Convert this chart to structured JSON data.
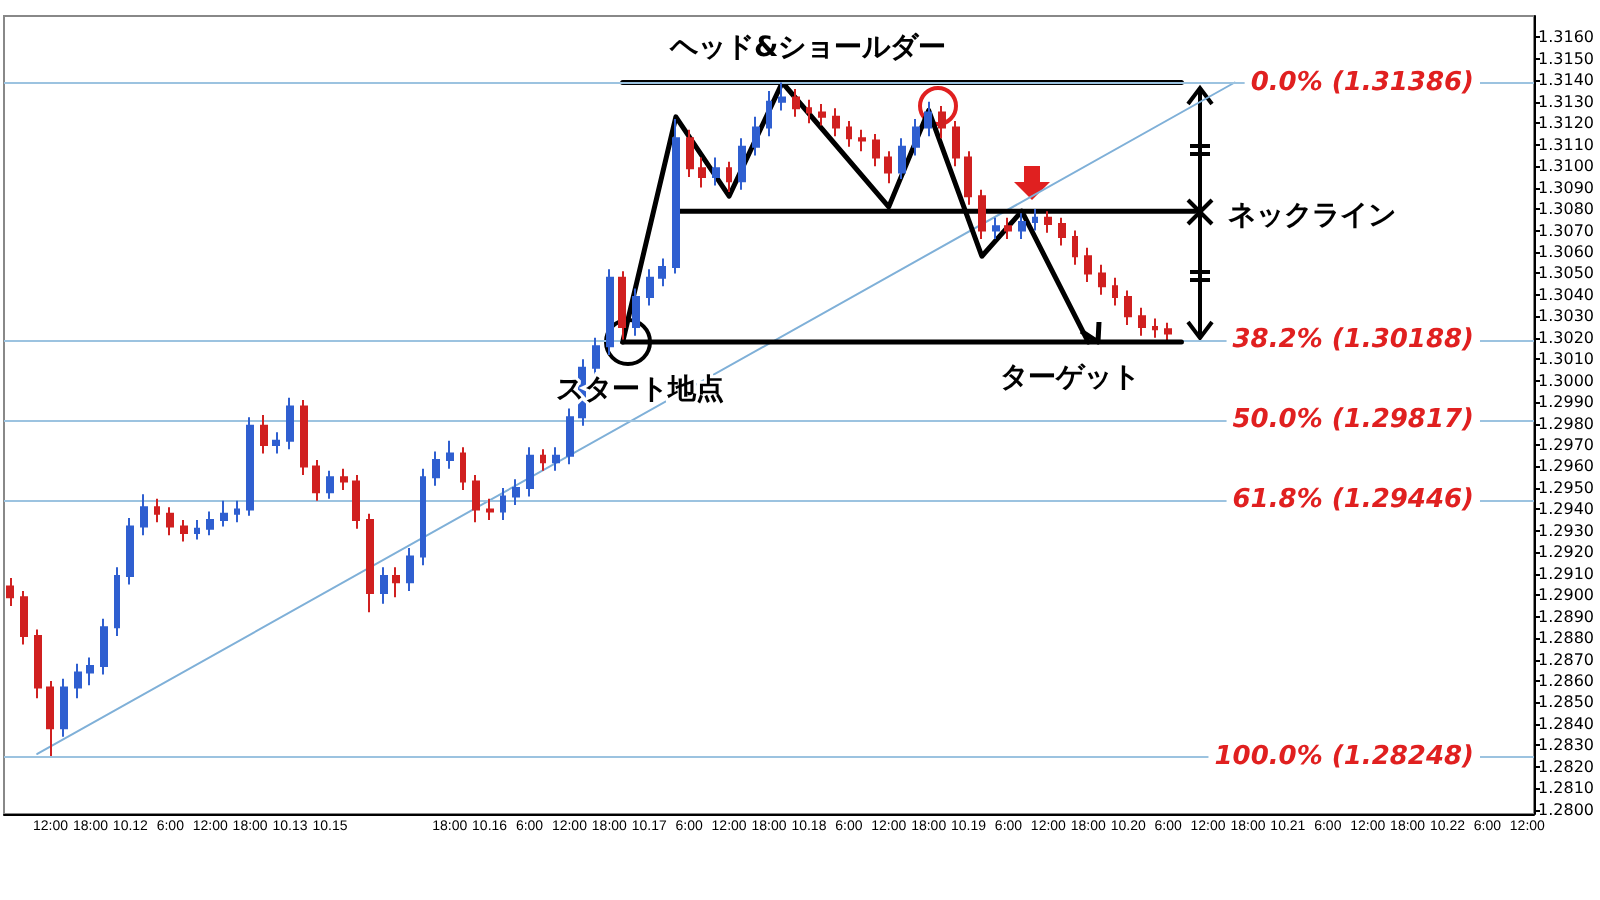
{
  "chart_data": {
    "type": "candlestick",
    "title": "ヘッド&ショールダー",
    "annotations": [
      "スタート地点",
      "ターゲット",
      "ネックライン"
    ],
    "categories": [
      null,
      null,
      null,
      "12:00",
      null,
      null,
      "18:00",
      null,
      null,
      "10.12",
      null,
      null,
      "6:00",
      null,
      null,
      "12:00",
      null,
      null,
      "18:00",
      null,
      null,
      "10.13",
      null,
      null,
      "10.15",
      null,
      null,
      null,
      null,
      null,
      null,
      null,
      null,
      "18:00",
      null,
      null,
      "10.16",
      null,
      null,
      "6:00",
      null,
      null,
      "12:00",
      null,
      null,
      "18:00",
      null,
      null,
      "10.17",
      null,
      null,
      "6:00",
      null,
      null,
      "12:00",
      null,
      null,
      "18:00",
      null,
      null,
      "10.18",
      null,
      null,
      "6:00",
      null,
      null,
      "12:00",
      null,
      null,
      "18:00",
      null,
      null,
      "10.19",
      null,
      null,
      "6:00",
      null,
      null,
      "12:00",
      null,
      null,
      "18:00",
      null,
      null,
      "10.20",
      null,
      null,
      "6:00",
      null,
      null,
      "12:00",
      null,
      null,
      "18:00",
      null,
      null,
      "10.21",
      null,
      null,
      "6:00",
      null,
      null,
      "12:00",
      null,
      null,
      "18:00",
      null,
      null,
      "10.22",
      null,
      null,
      "6:00",
      null,
      null,
      "12:00"
    ],
    "colors": [
      "#d02020",
      "#d02020",
      "#d02020",
      "#d02020",
      "#2f5fd0",
      "#2f5fd0",
      "#2f5fd0",
      "#2f5fd0",
      "#2f5fd0",
      "#2f5fd0",
      "#2f5fd0",
      "#d02020",
      "#d02020",
      "#d02020",
      "#2f5fd0",
      "#2f5fd0",
      "#2f5fd0",
      "#2f5fd0",
      "#2f5fd0",
      "#d02020",
      "#2f5fd0",
      "#2f5fd0",
      "#d02020",
      "#d02020",
      "#2f5fd0",
      "#d02020",
      "#d02020",
      "#d02020",
      "#2f5fd0",
      "#d02020",
      "#2f5fd0",
      "#2f5fd0",
      "#2f5fd0",
      "#2f5fd0",
      "#d02020",
      "#d02020",
      "#d02020",
      "#2f5fd0",
      "#2f5fd0",
      "#2f5fd0",
      "#d02020",
      "#2f5fd0",
      "#2f5fd0",
      "#2f5fd0",
      "#2f5fd0",
      "#2f5fd0",
      "#d02020",
      "#2f5fd0",
      "#2f5fd0",
      "#2f5fd0",
      "#2f5fd0",
      "#d02020",
      "#d02020",
      "#2f5fd0",
      "#d02020",
      "#2f5fd0",
      "#2f5fd0",
      "#2f5fd0",
      "#2f5fd0",
      "#d02020",
      "#d02020",
      "#d02020",
      "#d02020",
      "#d02020",
      "#d02020",
      "#d02020",
      "#d02020",
      "#2f5fd0",
      "#2f5fd0",
      "#2f5fd0",
      "#d02020",
      "#d02020",
      "#d02020",
      "#d02020",
      "#2f5fd0",
      "#d02020",
      "#2f5fd0",
      "#2f5fd0",
      "#d02020",
      "#d02020",
      "#d02020",
      "#d02020",
      "#d02020",
      "#d02020",
      "#d02020",
      "#d02020",
      "#d02020",
      "#d02020",
      null,
      null,
      null,
      null,
      null,
      null,
      null,
      null,
      null,
      null,
      null,
      null,
      null,
      null,
      null,
      null,
      null,
      null,
      null,
      null,
      null,
      null,
      null,
      null,
      null,
      null,
      null
    ],
    "ohlc": [
      [
        1.2904,
        1.2908,
        1.2895,
        1.2899
      ],
      [
        1.2899,
        1.2902,
        1.2877,
        1.2881
      ],
      [
        1.2881,
        1.2884,
        1.2852,
        1.2857
      ],
      [
        1.2857,
        1.286,
        1.2825,
        1.2838
      ],
      [
        1.2838,
        1.2861,
        1.2834,
        1.2857
      ],
      [
        1.2857,
        1.2868,
        1.2852,
        1.2864
      ],
      [
        1.2864,
        1.2871,
        1.2858,
        1.2867
      ],
      [
        1.2867,
        1.2889,
        1.2863,
        1.2885
      ],
      [
        1.2885,
        1.2913,
        1.2881,
        1.2909
      ],
      [
        1.2909,
        1.2936,
        1.2905,
        1.2932
      ],
      [
        1.2932,
        1.2947,
        1.2928,
        1.2941
      ],
      [
        1.2941,
        1.2945,
        1.2934,
        1.2938
      ],
      [
        1.2938,
        1.2941,
        1.2928,
        1.2932
      ],
      [
        1.2932,
        1.2935,
        1.2925,
        1.2929
      ],
      [
        1.2929,
        1.2935,
        1.2926,
        1.2931
      ],
      [
        1.2931,
        1.2939,
        1.2928,
        1.2935
      ],
      [
        1.2935,
        1.2944,
        1.2932,
        1.2938
      ],
      [
        1.2938,
        1.2944,
        1.2934,
        1.294
      ],
      [
        1.294,
        1.2983,
        1.2937,
        1.2979
      ],
      [
        1.2979,
        1.2984,
        1.2966,
        1.297
      ],
      [
        1.297,
        1.2976,
        1.2966,
        1.2972
      ],
      [
        1.2972,
        1.2992,
        1.2968,
        1.2988
      ],
      [
        1.2988,
        1.2991,
        1.2956,
        1.296
      ],
      [
        1.296,
        1.2963,
        1.2944,
        1.2948
      ],
      [
        1.2948,
        1.2958,
        1.2945,
        1.2955
      ],
      [
        1.2955,
        1.2959,
        1.2949,
        1.2953
      ],
      [
        1.2953,
        1.2956,
        1.2931,
        1.2935
      ],
      [
        1.2935,
        1.2938,
        1.2892,
        1.2901
      ],
      [
        1.2901,
        1.2913,
        1.2896,
        1.2909
      ],
      [
        1.2909,
        1.2913,
        1.2899,
        1.2906
      ],
      [
        1.2906,
        1.2922,
        1.2902,
        1.2918
      ],
      [
        1.2918,
        1.2959,
        1.2914,
        1.2955
      ],
      [
        1.2955,
        1.2967,
        1.2951,
        1.2963
      ],
      [
        1.2963,
        1.2972,
        1.2959,
        1.2966
      ],
      [
        1.2966,
        1.2969,
        1.2949,
        1.2953
      ],
      [
        1.2953,
        1.2956,
        1.2934,
        1.294
      ],
      [
        1.294,
        1.2945,
        1.2935,
        1.2939
      ],
      [
        1.2939,
        1.295,
        1.2935,
        1.2946
      ],
      [
        1.2946,
        1.2954,
        1.2942,
        1.295
      ],
      [
        1.295,
        1.2969,
        1.2946,
        1.2965
      ],
      [
        1.2965,
        1.2968,
        1.2958,
        1.2962
      ],
      [
        1.2962,
        1.2969,
        1.2958,
        1.2965
      ],
      [
        1.2965,
        1.2987,
        1.2961,
        1.2983
      ],
      [
        1.2983,
        1.301,
        1.2979,
        1.3006
      ],
      [
        1.3006,
        1.302,
        1.3002,
        1.3016
      ],
      [
        1.3016,
        1.3052,
        1.3012,
        1.3048
      ],
      [
        1.3048,
        1.3051,
        1.3019,
        1.3025
      ],
      [
        1.3025,
        1.3043,
        1.3021,
        1.3039
      ],
      [
        1.3039,
        1.3052,
        1.3035,
        1.3048
      ],
      [
        1.3048,
        1.3057,
        1.3044,
        1.3053
      ],
      [
        1.3053,
        1.3122,
        1.305,
        1.3113
      ],
      [
        1.3113,
        1.3117,
        1.3095,
        1.3099
      ],
      [
        1.3099,
        1.3104,
        1.309,
        1.3095
      ],
      [
        1.3095,
        1.3104,
        1.3091,
        1.3099
      ],
      [
        1.3099,
        1.3102,
        1.3088,
        1.3093
      ],
      [
        1.3093,
        1.3113,
        1.3089,
        1.3109
      ],
      [
        1.3109,
        1.3123,
        1.3105,
        1.3118
      ],
      [
        1.3118,
        1.3135,
        1.3114,
        1.313
      ],
      [
        1.313,
        1.3139,
        1.3126,
        1.3132
      ],
      [
        1.3132,
        1.3136,
        1.3123,
        1.3127
      ],
      [
        1.3127,
        1.3131,
        1.312,
        1.3125
      ],
      [
        1.3125,
        1.3129,
        1.3119,
        1.3123
      ],
      [
        1.3123,
        1.3127,
        1.3114,
        1.3118
      ],
      [
        1.3118,
        1.3121,
        1.3109,
        1.3113
      ],
      [
        1.3113,
        1.3117,
        1.3107,
        1.3112
      ],
      [
        1.3112,
        1.3115,
        1.31,
        1.3104
      ],
      [
        1.3104,
        1.3107,
        1.3092,
        1.3097
      ],
      [
        1.3097,
        1.3113,
        1.3094,
        1.3109
      ],
      [
        1.3109,
        1.3122,
        1.3105,
        1.3118
      ],
      [
        1.3118,
        1.313,
        1.3114,
        1.3125
      ],
      [
        1.3125,
        1.3128,
        1.3113,
        1.3118
      ],
      [
        1.3118,
        1.3121,
        1.31,
        1.3104
      ],
      [
        1.3104,
        1.3107,
        1.3082,
        1.3086
      ],
      [
        1.3086,
        1.3089,
        1.3066,
        1.307
      ],
      [
        1.307,
        1.3076,
        1.3066,
        1.3072
      ],
      [
        1.3072,
        1.3076,
        1.3066,
        1.307
      ],
      [
        1.307,
        1.3078,
        1.3066,
        1.3074
      ],
      [
        1.3074,
        1.308,
        1.307,
        1.3076
      ],
      [
        1.3076,
        1.3079,
        1.3069,
        1.3073
      ],
      [
        1.3073,
        1.3076,
        1.3063,
        1.3067
      ],
      [
        1.3067,
        1.307,
        1.3054,
        1.3058
      ],
      [
        1.3058,
        1.3062,
        1.3046,
        1.305
      ],
      [
        1.305,
        1.3054,
        1.304,
        1.3044
      ],
      [
        1.3044,
        1.3048,
        1.3035,
        1.3039
      ],
      [
        1.3039,
        1.3042,
        1.3026,
        1.303
      ],
      [
        1.303,
        1.3034,
        1.3021,
        1.3025
      ],
      [
        1.3025,
        1.3029,
        1.302,
        1.3024
      ],
      [
        1.3024,
        1.3027,
        1.3019,
        1.3022
      ],
      null,
      null,
      null,
      null,
      null,
      null,
      null,
      null,
      null,
      null,
      null,
      null,
      null,
      null,
      null,
      null,
      null,
      null,
      null,
      null,
      null,
      null,
      null,
      null,
      null,
      null,
      null
    ],
    "series": [
      {
        "type": "line",
        "color": "#7fb0d8",
        "values": [
          null,
          null,
          1.2826,
          null,
          null,
          null,
          null,
          null,
          null,
          null,
          null,
          null,
          null,
          null,
          null,
          null,
          null,
          null,
          null,
          null,
          null,
          null,
          null,
          null,
          null,
          null,
          null,
          null,
          null,
          null,
          null,
          null,
          null,
          null,
          null,
          null,
          null,
          null,
          null,
          null,
          null,
          null,
          null,
          null,
          null,
          null,
          null,
          null,
          null,
          null,
          null,
          null,
          null,
          null,
          null,
          null,
          null,
          null,
          null,
          null,
          null,
          null,
          null,
          null,
          null,
          null,
          null,
          null,
          null,
          null,
          null,
          null,
          null,
          null,
          null,
          null,
          null,
          null,
          null,
          null,
          null,
          null,
          null,
          null,
          null,
          null,
          null,
          null,
          null,
          null,
          null,
          null,
          1.3139,
          null,
          null,
          null,
          null,
          null,
          null,
          null,
          null,
          null,
          null,
          null,
          null,
          null,
          null,
          null,
          null,
          null,
          null,
          null,
          null,
          null,
          null
        ]
      },
      {
        "type": "line",
        "color": "#000000",
        "values": [
          null,
          null,
          null,
          null,
          null,
          null,
          null,
          null,
          null,
          null,
          null,
          null,
          null,
          null,
          null,
          null,
          null,
          null,
          null,
          null,
          null,
          null,
          null,
          null,
          null,
          null,
          null,
          null,
          null,
          null,
          null,
          null,
          null,
          null,
          null,
          null,
          null,
          null,
          null,
          null,
          null,
          null,
          null,
          null,
          null,
          null,
          1.3018,
          null,
          null,
          null,
          1.3123,
          null,
          null,
          null,
          1.3086,
          null,
          null,
          null,
          1.3139,
          null,
          null,
          null,
          null,
          null,
          null,
          null,
          1.3081,
          null,
          null,
          1.3126,
          null,
          null,
          null,
          1.3058,
          null,
          null,
          1.3079,
          null,
          null,
          null,
          null,
          1.3018,
          null,
          null,
          null,
          null,
          null,
          null,
          null,
          null,
          null,
          null,
          null,
          null,
          null,
          null,
          null,
          null,
          null,
          null,
          null,
          null,
          null,
          null,
          null,
          null,
          null,
          null,
          null,
          null,
          null,
          null,
          null,
          null,
          null
        ]
      },
      {
        "type": "line",
        "color": "#000000",
        "values": [
          null,
          null,
          null,
          null,
          null,
          null,
          null,
          null,
          null,
          null,
          null,
          null,
          null,
          null,
          null,
          null,
          null,
          null,
          null,
          null,
          null,
          null,
          null,
          null,
          null,
          null,
          null,
          null,
          null,
          null,
          null,
          null,
          null,
          null,
          null,
          null,
          null,
          null,
          null,
          null,
          null,
          null,
          null,
          null,
          null,
          null,
          1.3139,
          null,
          null,
          null,
          null,
          null,
          null,
          null,
          null,
          null,
          null,
          null,
          null,
          null,
          null,
          null,
          null,
          null,
          null,
          null,
          null,
          null,
          null,
          null,
          null,
          null,
          null,
          null,
          null,
          null,
          null,
          null,
          null,
          null,
          null,
          null,
          null,
          null,
          null,
          null,
          null,
          null,
          1.3139,
          null,
          null,
          null,
          null,
          null,
          null,
          null,
          null,
          null,
          null,
          null,
          null,
          null,
          null,
          null,
          null,
          null,
          null,
          null,
          null,
          null,
          null,
          null,
          null,
          null,
          null
        ]
      },
      {
        "type": "line",
        "color": "#000000",
        "values": [
          null,
          null,
          null,
          null,
          null,
          null,
          null,
          null,
          null,
          null,
          null,
          null,
          null,
          null,
          null,
          null,
          null,
          null,
          null,
          null,
          null,
          null,
          null,
          null,
          null,
          null,
          null,
          null,
          null,
          null,
          null,
          null,
          null,
          null,
          null,
          null,
          null,
          null,
          null,
          null,
          null,
          null,
          null,
          null,
          null,
          null,
          null,
          null,
          null,
          null,
          1.3079,
          null,
          null,
          null,
          null,
          null,
          null,
          null,
          null,
          null,
          null,
          null,
          null,
          null,
          null,
          null,
          null,
          null,
          null,
          null,
          null,
          null,
          null,
          null,
          null,
          null,
          null,
          null,
          null,
          null,
          null,
          null,
          null,
          null,
          null,
          null,
          null,
          null,
          null,
          1.3079,
          null,
          null,
          null,
          null,
          null,
          null,
          null,
          null,
          null,
          null,
          null,
          null,
          null,
          null,
          null,
          null,
          null,
          null,
          null,
          null,
          null,
          null,
          null,
          null,
          null
        ]
      },
      {
        "type": "line",
        "color": "#000000",
        "values": [
          null,
          null,
          null,
          null,
          null,
          null,
          null,
          null,
          null,
          null,
          null,
          null,
          null,
          null,
          null,
          null,
          null,
          null,
          null,
          null,
          null,
          null,
          null,
          null,
          null,
          null,
          null,
          null,
          null,
          null,
          null,
          null,
          null,
          null,
          null,
          null,
          null,
          null,
          null,
          null,
          null,
          null,
          null,
          null,
          null,
          null,
          1.3018,
          null,
          null,
          null,
          null,
          null,
          null,
          null,
          null,
          null,
          null,
          null,
          null,
          null,
          null,
          null,
          null,
          null,
          null,
          null,
          null,
          null,
          null,
          null,
          null,
          null,
          null,
          null,
          null,
          null,
          null,
          null,
          null,
          null,
          null,
          null,
          null,
          null,
          null,
          null,
          null,
          null,
          1.3018,
          null,
          null,
          null,
          null,
          null,
          null,
          null,
          null,
          null,
          null,
          null,
          null,
          null,
          null,
          null,
          null,
          null,
          null,
          null,
          null,
          null,
          null,
          null,
          null,
          null,
          null
        ]
      }
    ],
    "ylim": [
      1.2798,
      1.317
    ],
    "yticks": [
      {
        "value": 1.28,
        "label": "1.2800"
      },
      {
        "value": 1.281,
        "label": "1.2810"
      },
      {
        "value": 1.282,
        "label": "1.2820"
      },
      {
        "value": 1.283,
        "label": "1.2830"
      },
      {
        "value": 1.284,
        "label": "1.2840"
      },
      {
        "value": 1.285,
        "label": "1.2850"
      },
      {
        "value": 1.286,
        "label": "1.2860"
      },
      {
        "value": 1.287,
        "label": "1.2870"
      },
      {
        "value": 1.288,
        "label": "1.2880"
      },
      {
        "value": 1.289,
        "label": "1.2890"
      },
      {
        "value": 1.29,
        "label": "1.2900"
      },
      {
        "value": 1.291,
        "label": "1.2910"
      },
      {
        "value": 1.292,
        "label": "1.2920"
      },
      {
        "value": 1.293,
        "label": "1.2930"
      },
      {
        "value": 1.294,
        "label": "1.2940"
      },
      {
        "value": 1.295,
        "label": "1.2950"
      },
      {
        "value": 1.296,
        "label": "1.2960"
      },
      {
        "value": 1.297,
        "label": "1.2970"
      },
      {
        "value": 1.298,
        "label": "1.2980"
      },
      {
        "value": 1.299,
        "label": "1.2990"
      },
      {
        "value": 1.3,
        "label": "1.3000"
      },
      {
        "value": 1.301,
        "label": "1.3010"
      },
      {
        "value": 1.302,
        "label": "1.3020"
      },
      {
        "value": 1.303,
        "label": "1.3030"
      },
      {
        "value": 1.304,
        "label": "1.3040"
      },
      {
        "value": 1.305,
        "label": "1.3050"
      },
      {
        "value": 1.306,
        "label": "1.3060"
      },
      {
        "value": 1.307,
        "label": "1.3070"
      },
      {
        "value": 1.308,
        "label": "1.3080"
      },
      {
        "value": 1.309,
        "label": "1.3090"
      },
      {
        "value": 1.31,
        "label": "1.3100"
      },
      {
        "value": 1.311,
        "label": "1.3110"
      },
      {
        "value": 1.312,
        "label": "1.3120"
      },
      {
        "value": 1.313,
        "label": "1.3130"
      },
      {
        "value": 1.314,
        "label": "1.3140"
      },
      {
        "value": 1.315,
        "label": "1.3150"
      },
      {
        "value": 1.316,
        "label": "1.3160"
      }
    ],
    "ref_lines": [
      {
        "axis": "y",
        "value": 1.31386,
        "label": "0.0% (1.31386)",
        "color": "#9cc3e0"
      },
      {
        "axis": "y",
        "value": 1.30188,
        "label": "38.2% (1.30188)",
        "color": "#9cc3e0"
      },
      {
        "axis": "y",
        "value": 1.29817,
        "label": "50.0% (1.29817)",
        "color": "#9cc3e0"
      },
      {
        "axis": "y",
        "value": 1.29446,
        "label": "61.8% (1.29446)",
        "color": "#9cc3e0"
      },
      {
        "axis": "y",
        "value": 1.28248,
        "label": "100.0% (1.28248)",
        "color": "#9cc3e0"
      }
    ]
  }
}
